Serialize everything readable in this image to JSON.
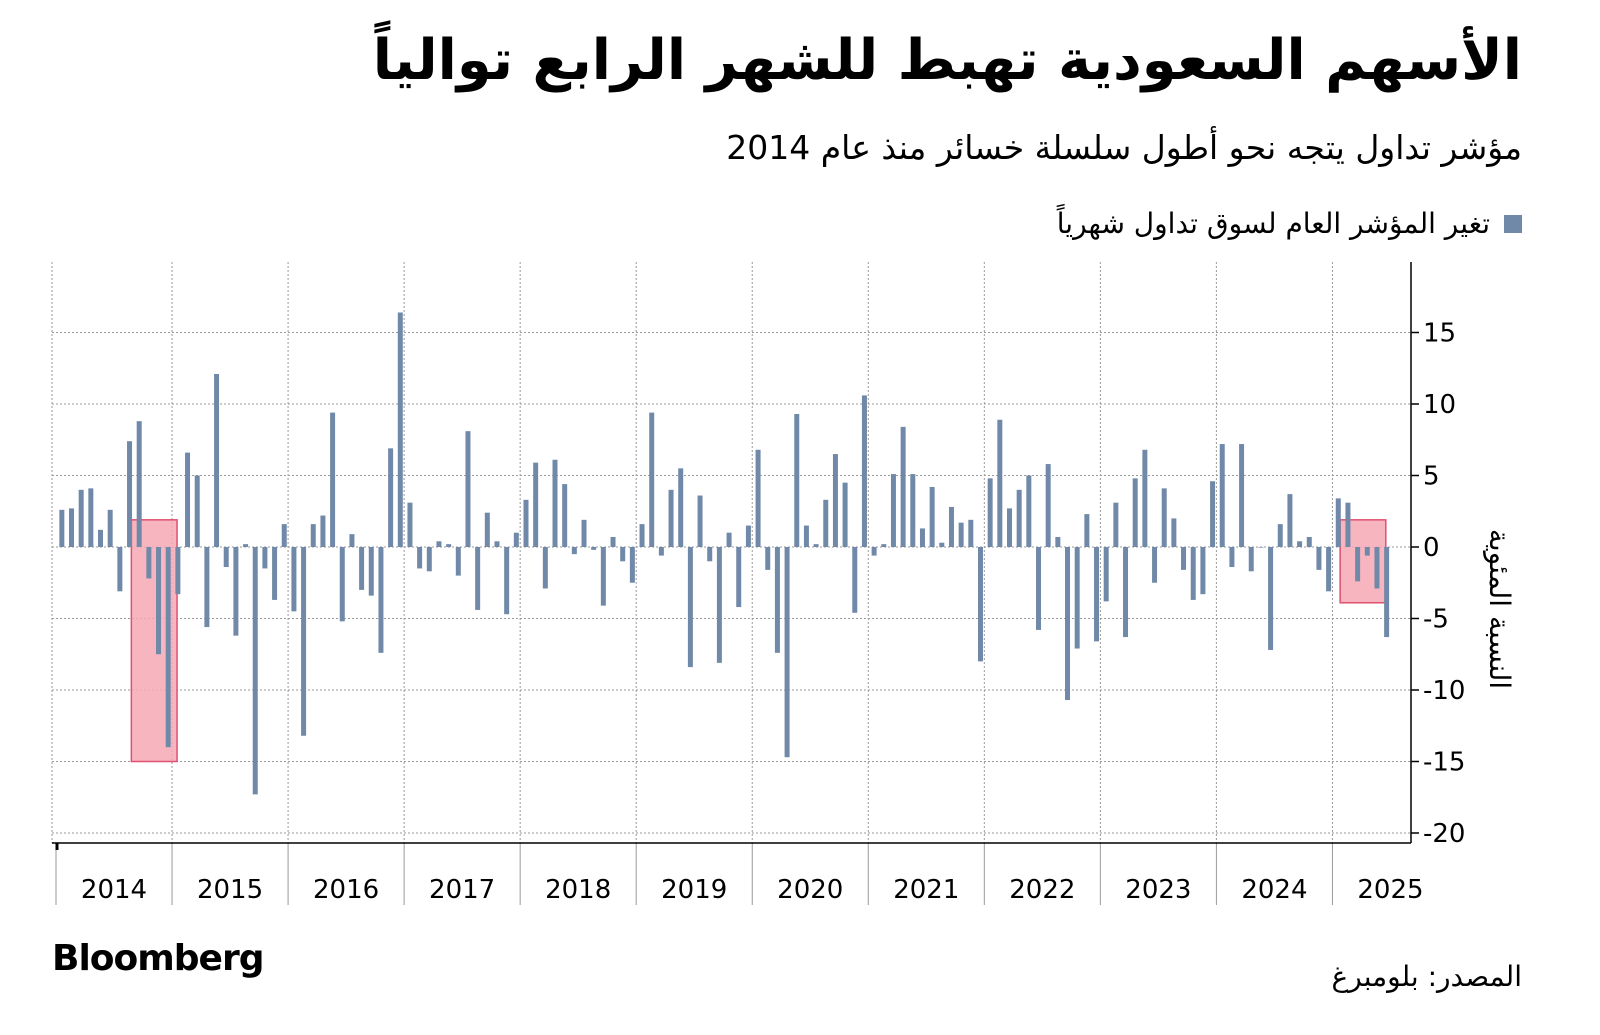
{
  "header": {
    "title": "الأسهم السعودية تهبط للشهر الرابع توالياً",
    "subtitle": "مؤشر تداول يتجه نحو أطول سلسلة خسائر منذ عام 2014"
  },
  "legend": {
    "label": "تغير المؤشر العام لسوق تداول شهرياً",
    "color": "#7189a8"
  },
  "footer": {
    "logo": "Bloomberg",
    "source": "المصدر: بلومبرغ"
  },
  "chart_data": {
    "type": "bar",
    "ylabel": "النسبة المئوية",
    "ylim": [
      -20,
      19
    ],
    "yticks": [
      15,
      10,
      5,
      0,
      -5,
      -10,
      -15,
      -20
    ],
    "year_labels": [
      "2014",
      "2015",
      "2016",
      "2017",
      "2018",
      "2019",
      "2020",
      "2021",
      "2022",
      "2023",
      "2024",
      "2025"
    ],
    "start": "2014-01",
    "series": [
      {
        "color": "#7189a8",
        "values": [
          2.6,
          2.7,
          4.0,
          4.1,
          1.2,
          2.6,
          -3.1,
          7.4,
          8.8,
          -2.2,
          -7.5,
          -14.0,
          -3.3,
          6.6,
          5.0,
          -5.6,
          12.1,
          -1.4,
          -6.2,
          0.2,
          -17.3,
          -1.5,
          -3.7,
          1.6,
          -4.5,
          -13.2,
          1.6,
          2.2,
          9.4,
          -5.2,
          0.9,
          -3.0,
          -3.4,
          -7.4,
          6.9,
          16.4,
          3.1,
          -1.5,
          -1.7,
          0.4,
          0.2,
          -2.0,
          8.1,
          -4.4,
          2.4,
          0.4,
          -4.7,
          1.0,
          3.3,
          5.9,
          -2.9,
          6.1,
          4.4,
          -0.5,
          1.9,
          -0.2,
          -4.1,
          0.7,
          -1.0,
          -2.5,
          1.6,
          9.4,
          -0.6,
          4.0,
          5.5,
          -8.4,
          3.6,
          -1.0,
          -8.1,
          1.0,
          -4.2,
          1.5,
          6.8,
          -1.6,
          -7.4,
          -14.7,
          9.3,
          1.5,
          0.2,
          3.3,
          6.5,
          4.5,
          -4.6,
          10.6,
          -0.6,
          0.2,
          5.1,
          8.4,
          5.1,
          1.3,
          4.2,
          0.3,
          2.8,
          1.7,
          1.9,
          -8.0,
          4.8,
          8.9,
          2.7,
          4.0,
          5.0,
          -5.8,
          5.8,
          0.7,
          -10.7,
          -7.1,
          2.3,
          -6.6,
          -3.8,
          3.1,
          -6.3,
          4.8,
          6.8,
          -2.5,
          4.1,
          2.0,
          -1.6,
          -3.7,
          -3.3,
          4.6,
          7.2,
          -1.4,
          7.2,
          -1.7,
          0.0,
          -7.2,
          1.6,
          3.7,
          0.4,
          0.7,
          -1.6,
          -3.1,
          3.4,
          3.1,
          -2.4,
          -0.6,
          -2.9,
          -6.3
        ]
      }
    ],
    "highlights": [
      {
        "label": "",
        "from": "2014-09",
        "to": "2014-12",
        "color": "#f6a8b5"
      },
      {
        "label": "",
        "from": "2025-02",
        "to": "2025-05",
        "color": "#f6a8b5"
      }
    ]
  }
}
